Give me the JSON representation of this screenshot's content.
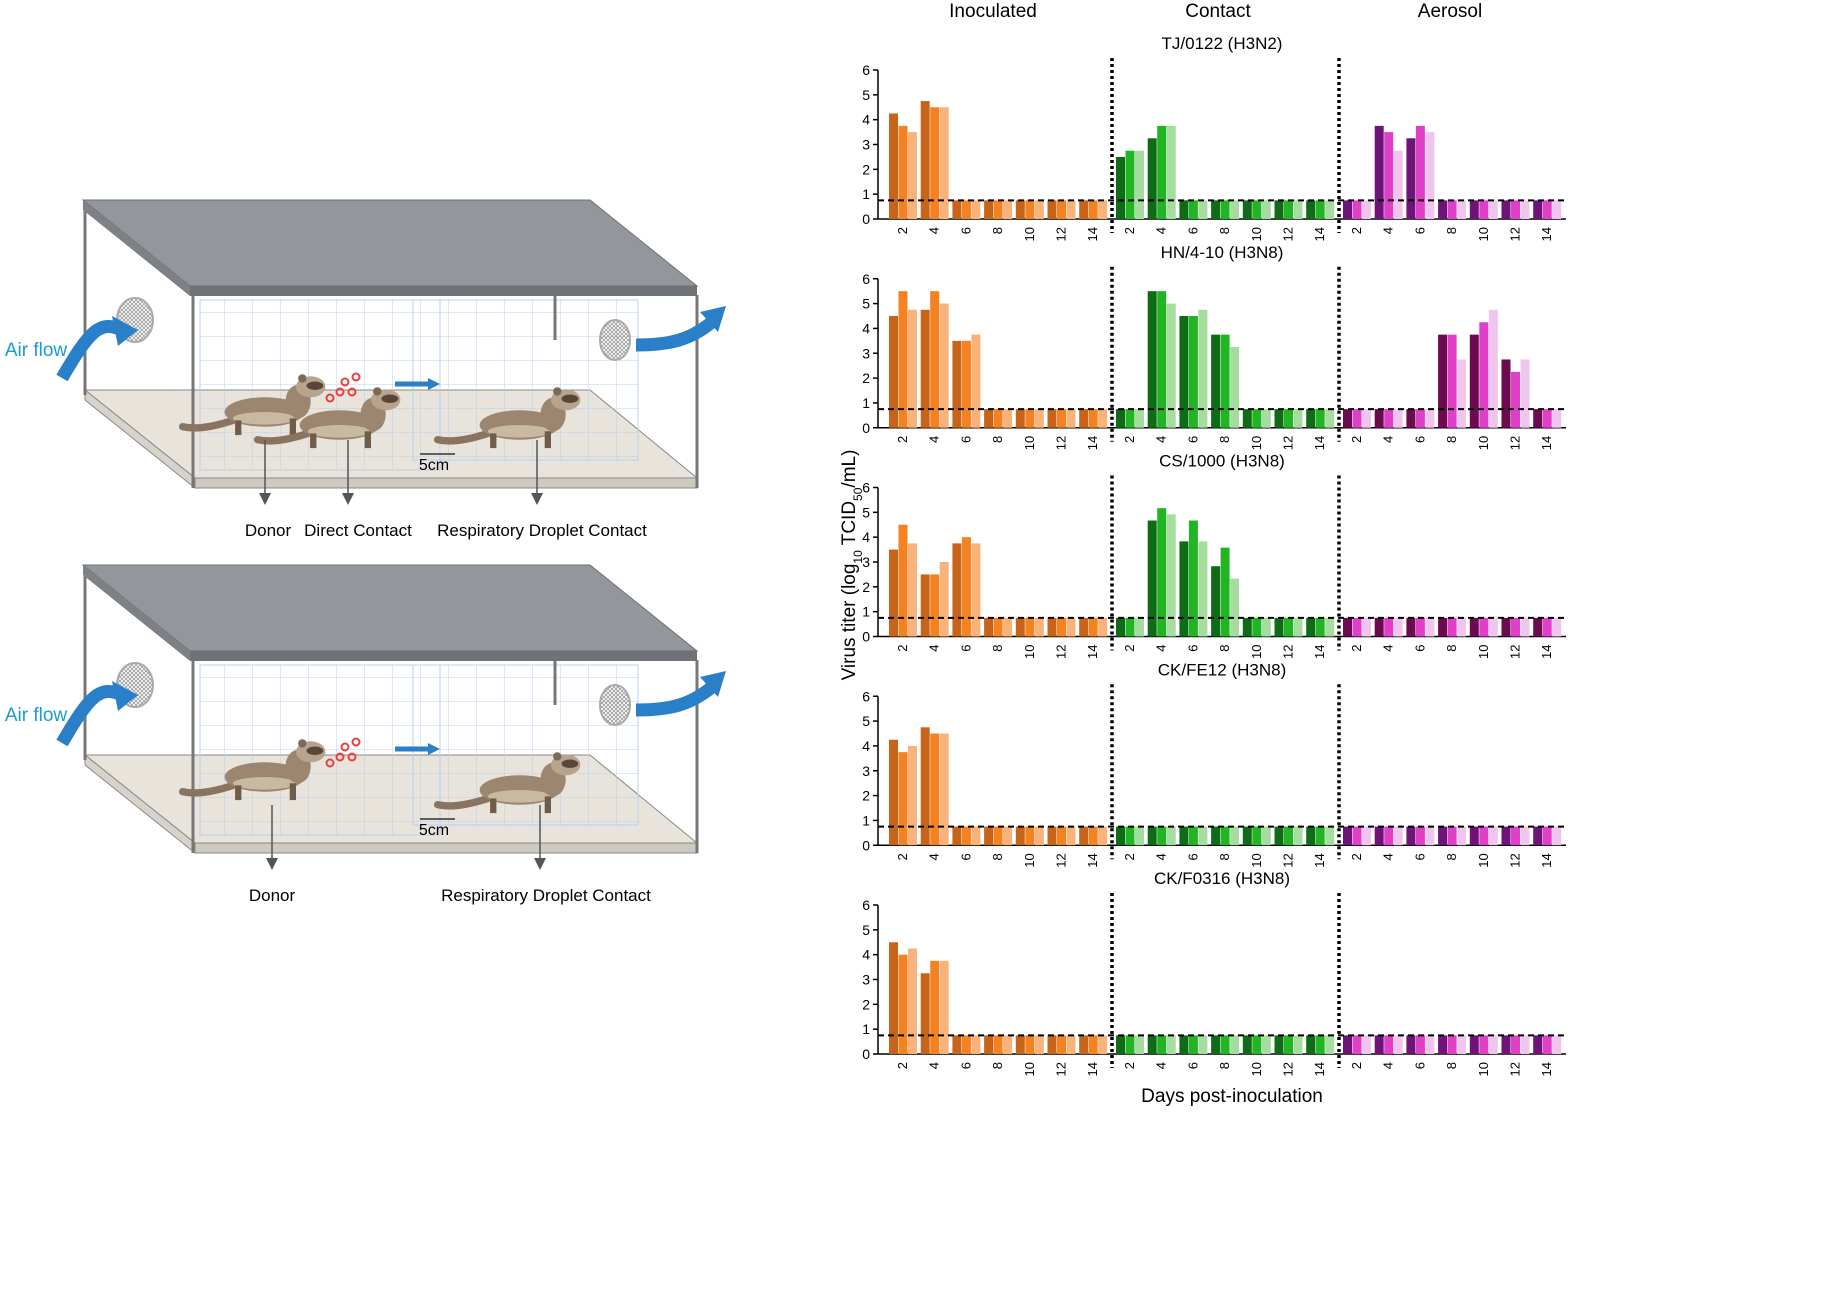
{
  "column_titles": [
    "Inoculated",
    "Contact",
    "Aerosol"
  ],
  "y_label": [
    "Virus titer (log",
    "10",
    " TCID",
    "50",
    "/mL)"
  ],
  "x_label": "Days post-inoculation",
  "detection_limit": 0.75,
  "diagram": {
    "top": {
      "air_flow": "Air flow",
      "distance": "5cm",
      "labels": [
        "Donor",
        "Direct Contact",
        "Respiratory Droplet Contact"
      ]
    },
    "bottom": {
      "air_flow": "Air flow",
      "distance": "5cm",
      "labels": [
        "Donor",
        "Respiratory Droplet Contact"
      ]
    }
  },
  "chart_data": [
    {
      "type": "bar",
      "title": "TJ/0122 (H3N2)",
      "categories": [
        "2",
        "4",
        "6",
        "8",
        "10",
        "12",
        "14"
      ],
      "ylim": [
        0,
        6
      ],
      "yticks": [
        0,
        1,
        2,
        3,
        4,
        5,
        6
      ],
      "groups": [
        {
          "series": [
            {
              "color": "#c8631a",
              "values": [
                4.25,
                4.75,
                0.75,
                0.75,
                0.75,
                0.75,
                0.75
              ]
            },
            {
              "color": "#f58220",
              "values": [
                3.75,
                4.5,
                0.75,
                0.75,
                0.75,
                0.75,
                0.75
              ]
            },
            {
              "color": "#f9b27a",
              "values": [
                3.5,
                4.5,
                0.75,
                0.75,
                0.75,
                0.75,
                0.75
              ]
            }
          ]
        },
        {
          "series": [
            {
              "color": "#0e6b16",
              "values": [
                2.5,
                3.25,
                0.75,
                0.75,
                0.75,
                0.75,
                0.75
              ]
            },
            {
              "color": "#22b523",
              "values": [
                2.75,
                3.75,
                0.75,
                0.75,
                0.75,
                0.75,
                0.75
              ]
            },
            {
              "color": "#a6dca0",
              "values": [
                2.75,
                3.75,
                0.75,
                0.75,
                0.75,
                0.75,
                0.75
              ]
            }
          ]
        },
        {
          "series": [
            {
              "color": "#6e1478",
              "values": [
                0.75,
                3.75,
                3.25,
                0.75,
                0.75,
                0.75,
                0.75
              ]
            },
            {
              "color": "#e040c8",
              "values": [
                0.75,
                3.5,
                3.75,
                0.75,
                0.75,
                0.75,
                0.75
              ]
            },
            {
              "color": "#efc5ee",
              "values": [
                0.75,
                2.75,
                3.5,
                0.75,
                0.75,
                0.75,
                0.75
              ]
            }
          ]
        }
      ]
    },
    {
      "type": "bar",
      "title": "HN/4-10 (H3N8)",
      "categories": [
        "2",
        "4",
        "6",
        "8",
        "10",
        "12",
        "14"
      ],
      "ylim": [
        0,
        6
      ],
      "yticks": [
        0,
        1,
        2,
        3,
        4,
        5,
        6
      ],
      "groups": [
        {
          "series": [
            {
              "color": "#c8631a",
              "values": [
                4.5,
                4.75,
                3.5,
                0.75,
                0.75,
                0.75,
                0.75
              ]
            },
            {
              "color": "#f58220",
              "values": [
                5.5,
                5.5,
                3.5,
                0.75,
                0.75,
                0.75,
                0.75
              ]
            },
            {
              "color": "#f9b27a",
              "values": [
                4.75,
                5.0,
                3.75,
                0.75,
                0.75,
                0.75,
                0.75
              ]
            }
          ]
        },
        {
          "series": [
            {
              "color": "#0e6b16",
              "values": [
                0.75,
                5.5,
                4.5,
                3.75,
                0.75,
                0.75,
                0.75
              ]
            },
            {
              "color": "#22b523",
              "values": [
                0.75,
                5.5,
                4.5,
                3.75,
                0.75,
                0.75,
                0.75
              ]
            },
            {
              "color": "#a6dca0",
              "values": [
                0.75,
                5.0,
                4.75,
                3.25,
                0.75,
                0.75,
                0.75
              ]
            }
          ]
        },
        {
          "series": [
            {
              "color": "#6b0a4f",
              "values": [
                0.75,
                0.75,
                0.75,
                3.75,
                3.75,
                2.75,
                0.75
              ]
            },
            {
              "color": "#e040c8",
              "values": [
                0.75,
                0.75,
                0.75,
                3.75,
                4.25,
                2.25,
                0.75
              ]
            },
            {
              "color": "#efc5ee",
              "values": [
                0.75,
                0.75,
                0.75,
                2.75,
                4.75,
                2.75,
                0.75
              ]
            }
          ]
        }
      ]
    },
    {
      "type": "bar",
      "title": "CS/1000 (H3N8)",
      "categories": [
        "2",
        "4",
        "6",
        "8",
        "10",
        "12",
        "14"
      ],
      "ylim": [
        0,
        6
      ],
      "yticks": [
        0,
        1,
        2,
        3,
        4,
        5,
        6
      ],
      "groups": [
        {
          "series": [
            {
              "color": "#c8631a",
              "values": [
                3.5,
                2.5,
                3.75,
                0.75,
                0.75,
                0.75,
                0.75
              ]
            },
            {
              "color": "#f58220",
              "values": [
                4.5,
                2.5,
                4.0,
                0.75,
                0.75,
                0.75,
                0.75
              ]
            },
            {
              "color": "#f9b27a",
              "values": [
                3.75,
                3.0,
                3.75,
                0.75,
                0.75,
                0.75,
                0.75
              ]
            }
          ]
        },
        {
          "series": [
            {
              "color": "#0e6b16",
              "values": [
                0.75,
                4.67,
                3.83,
                2.83,
                0.75,
                0.75,
                0.75
              ]
            },
            {
              "color": "#22b523",
              "values": [
                0.75,
                5.17,
                4.67,
                3.58,
                0.75,
                0.75,
                0.75
              ]
            },
            {
              "color": "#a6dca0",
              "values": [
                0.75,
                4.92,
                3.83,
                2.33,
                0.75,
                0.75,
                0.75
              ]
            }
          ]
        },
        {
          "series": [
            {
              "color": "#6b0a4f",
              "values": [
                0.75,
                0.75,
                0.75,
                0.75,
                0.75,
                0.75,
                0.75
              ]
            },
            {
              "color": "#e040c8",
              "values": [
                0.75,
                0.75,
                0.75,
                0.75,
                0.75,
                0.75,
                0.75
              ]
            },
            {
              "color": "#efc5ee",
              "values": [
                0.75,
                0.75,
                0.75,
                0.75,
                0.75,
                0.75,
                0.75
              ]
            }
          ]
        }
      ]
    },
    {
      "type": "bar",
      "title": "CK/FE12 (H3N8)",
      "categories": [
        "2",
        "4",
        "6",
        "8",
        "10",
        "12",
        "14"
      ],
      "ylim": [
        0,
        6
      ],
      "yticks": [
        0,
        1,
        2,
        3,
        4,
        5,
        6
      ],
      "groups": [
        {
          "series": [
            {
              "color": "#c8631a",
              "values": [
                4.25,
                4.75,
                0.75,
                0.75,
                0.75,
                0.75,
                0.75
              ]
            },
            {
              "color": "#f58220",
              "values": [
                3.75,
                4.5,
                0.75,
                0.75,
                0.75,
                0.75,
                0.75
              ]
            },
            {
              "color": "#f9b27a",
              "values": [
                4.0,
                4.5,
                0.75,
                0.75,
                0.75,
                0.75,
                0.75
              ]
            }
          ]
        },
        {
          "series": [
            {
              "color": "#0e6b16",
              "values": [
                0.75,
                0.75,
                0.75,
                0.75,
                0.75,
                0.75,
                0.75
              ]
            },
            {
              "color": "#22b523",
              "values": [
                0.75,
                0.75,
                0.75,
                0.75,
                0.75,
                0.75,
                0.75
              ]
            },
            {
              "color": "#a6dca0",
              "values": [
                0.75,
                0.75,
                0.75,
                0.75,
                0.75,
                0.75,
                0.75
              ]
            }
          ]
        },
        {
          "series": [
            {
              "color": "#6e1478",
              "values": [
                0.75,
                0.75,
                0.75,
                0.75,
                0.75,
                0.75,
                0.75
              ]
            },
            {
              "color": "#e040c8",
              "values": [
                0.75,
                0.75,
                0.75,
                0.75,
                0.75,
                0.75,
                0.75
              ]
            },
            {
              "color": "#efc5ee",
              "values": [
                0.75,
                0.75,
                0.75,
                0.75,
                0.75,
                0.75,
                0.75
              ]
            }
          ]
        }
      ]
    },
    {
      "type": "bar",
      "title": "CK/F0316 (H3N8)",
      "categories": [
        "2",
        "4",
        "6",
        "8",
        "10",
        "12",
        "14"
      ],
      "ylim": [
        0,
        6
      ],
      "yticks": [
        0,
        1,
        2,
        3,
        4,
        5,
        6
      ],
      "groups": [
        {
          "series": [
            {
              "color": "#c8631a",
              "values": [
                4.5,
                3.25,
                0.75,
                0.75,
                0.75,
                0.75,
                0.75
              ]
            },
            {
              "color": "#f58220",
              "values": [
                4.0,
                3.75,
                0.75,
                0.75,
                0.75,
                0.75,
                0.75
              ]
            },
            {
              "color": "#f9b27a",
              "values": [
                4.25,
                3.75,
                0.75,
                0.75,
                0.75,
                0.75,
                0.75
              ]
            }
          ]
        },
        {
          "series": [
            {
              "color": "#0e6b16",
              "values": [
                0.75,
                0.75,
                0.75,
                0.75,
                0.75,
                0.75,
                0.75
              ]
            },
            {
              "color": "#22b523",
              "values": [
                0.75,
                0.75,
                0.75,
                0.75,
                0.75,
                0.75,
                0.75
              ]
            },
            {
              "color": "#a6dca0",
              "values": [
                0.75,
                0.75,
                0.75,
                0.75,
                0.75,
                0.75,
                0.75
              ]
            }
          ]
        },
        {
          "series": [
            {
              "color": "#6e1478",
              "values": [
                0.75,
                0.75,
                0.75,
                0.75,
                0.75,
                0.75,
                0.75
              ]
            },
            {
              "color": "#e040c8",
              "values": [
                0.75,
                0.75,
                0.75,
                0.75,
                0.75,
                0.75,
                0.75
              ]
            },
            {
              "color": "#efc5ee",
              "values": [
                0.75,
                0.75,
                0.75,
                0.75,
                0.75,
                0.75,
                0.75
              ]
            }
          ]
        }
      ]
    }
  ]
}
